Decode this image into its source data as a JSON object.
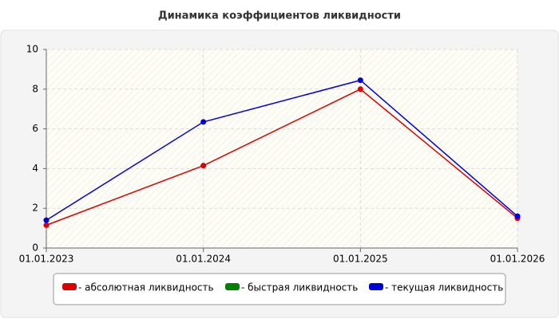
{
  "chart_data": {
    "type": "line",
    "title": "Динамика коэффициентов ликвидности",
    "categories": [
      "01.01.2023",
      "01.01.2024",
      "01.01.2025",
      "01.01.2026"
    ],
    "series": [
      {
        "name": "- абсолютная ликвидность",
        "color": "#dd0000",
        "values": [
          1.15,
          4.15,
          8.0,
          1.5
        ]
      },
      {
        "name": "- быстрая ликвидность",
        "color": "#008000",
        "values": [
          null,
          null,
          null,
          null
        ]
      },
      {
        "name": "- текущая ликвидность",
        "color": "#0000dd",
        "values": [
          1.4,
          6.35,
          8.45,
          1.6
        ]
      }
    ],
    "ylim": [
      0,
      10
    ],
    "yticks": [
      0,
      2,
      4,
      6,
      8,
      10
    ],
    "grid": true,
    "legend": "bottom"
  }
}
